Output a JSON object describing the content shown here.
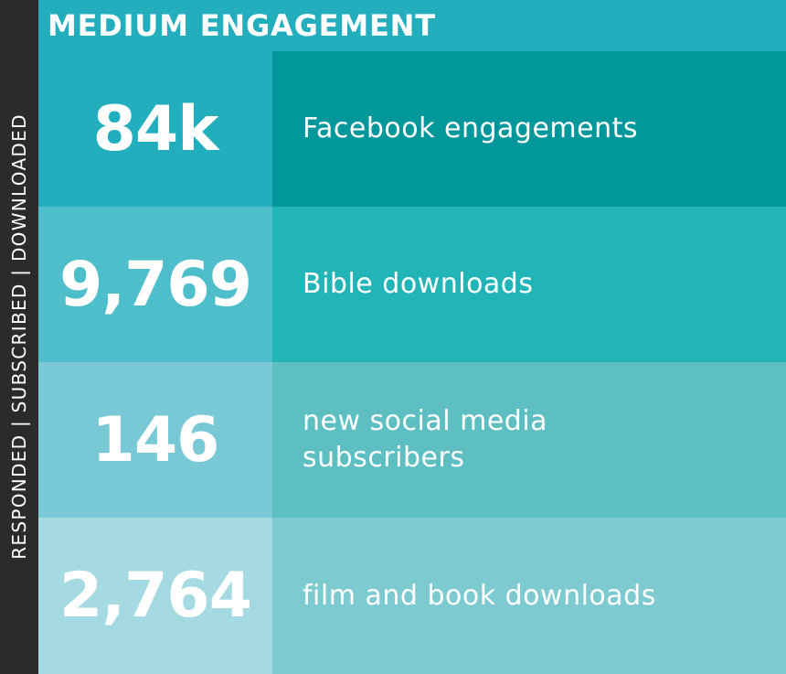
{
  "side_label": "RESPONDED | SUBSCRIBED | DOWNLOADED",
  "header": {
    "title": "MEDIUM ENGAGEMENT"
  },
  "colors": {
    "side_bar": "#2b2b2b",
    "header": "#22aebd"
  },
  "rows": [
    {
      "value": "84k",
      "label": "Facebook engagements",
      "value_bg": "#22aebd",
      "label_bg": "#01979b"
    },
    {
      "value": "9,769",
      "label": "Bible downloads",
      "value_bg": "#4fbecb",
      "label_bg": "#22b5b8"
    },
    {
      "value": "146",
      "label": "new social media subscribers",
      "value_bg": "#78c9d5",
      "label_bg": "#5ebfc3"
    },
    {
      "value": "2,764",
      "label": "film and book downloads",
      "value_bg": "#a6dae3",
      "label_bg": "#7dcad0"
    }
  ]
}
